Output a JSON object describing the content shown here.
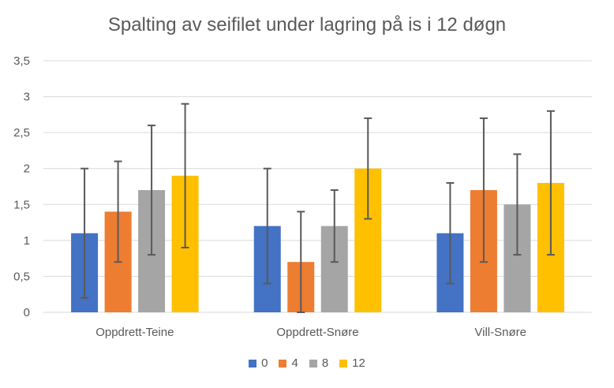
{
  "chart_data": {
    "type": "bar",
    "title": "Spalting av seifilet under lagring på is i 12 døgn",
    "xlabel": "",
    "ylabel": "",
    "ylim": [
      0,
      3.5
    ],
    "yticks": [
      "0",
      "0,5",
      "1",
      "1,5",
      "2",
      "2,5",
      "3",
      "3,5"
    ],
    "grid": true,
    "legend_position": "bottom",
    "categories": [
      "Oppdrett-Teine",
      "Oppdrett-Snøre",
      "Vill-Snøre"
    ],
    "series": [
      {
        "name": "0",
        "color": "#4472C4",
        "values": [
          1.1,
          1.2,
          1.1
        ],
        "error_low": [
          0.2,
          0.4,
          0.4
        ],
        "error_high": [
          2.0,
          2.0,
          1.8
        ]
      },
      {
        "name": "4",
        "color": "#ED7D31",
        "values": [
          1.4,
          0.7,
          1.7
        ],
        "error_low": [
          0.7,
          0.0,
          0.7
        ],
        "error_high": [
          2.1,
          1.4,
          2.7
        ]
      },
      {
        "name": "8",
        "color": "#A5A5A5",
        "values": [
          1.7,
          1.2,
          1.5
        ],
        "error_low": [
          0.8,
          0.7,
          0.8
        ],
        "error_high": [
          2.6,
          1.7,
          2.2
        ]
      },
      {
        "name": "12",
        "color": "#FFC000",
        "values": [
          1.9,
          2.0,
          1.8
        ],
        "error_low": [
          0.9,
          1.3,
          0.8
        ],
        "error_high": [
          2.9,
          2.7,
          2.8
        ]
      }
    ]
  }
}
